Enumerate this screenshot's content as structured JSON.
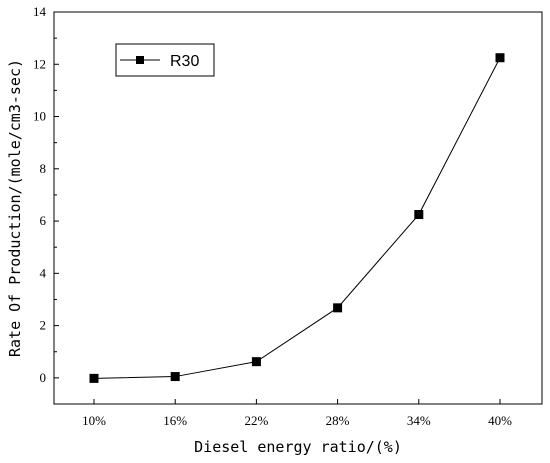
{
  "chart_data": {
    "type": "line",
    "x_categories": [
      "10%",
      "16%",
      "22%",
      "28%",
      "34%",
      "40%"
    ],
    "series": [
      {
        "name": "R30",
        "values": [
          -0.02,
          0.05,
          0.62,
          2.68,
          6.25,
          12.25
        ],
        "marker": "square",
        "color": "#000000"
      }
    ],
    "xlabel": "Diesel energy ratio/(%)",
    "ylabel": "Rate Of Production/(mole/cm3-sec)",
    "ylim": [
      -1,
      14
    ],
    "y_ticks": [
      0,
      2,
      4,
      6,
      8,
      10,
      12,
      14
    ],
    "grid": false,
    "legend_position": "top-left"
  }
}
